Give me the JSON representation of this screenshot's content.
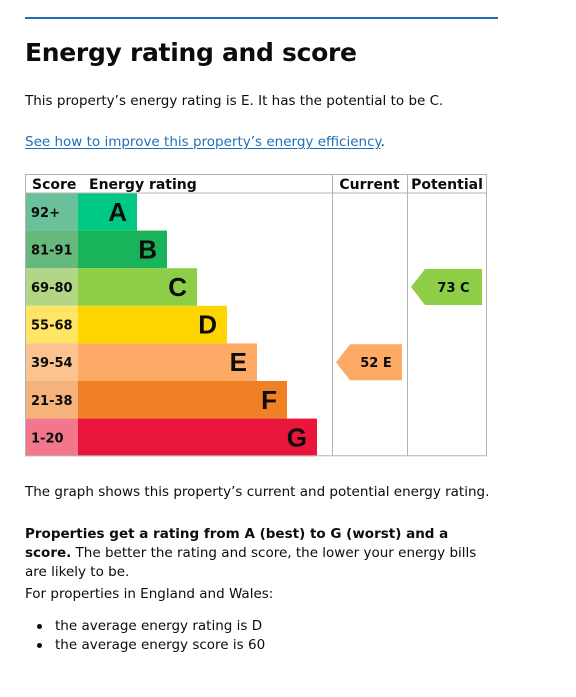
{
  "heading": "Energy rating and score",
  "intro": "This property’s energy rating is E. It has the potential to be C.",
  "improve_link": "See how to improve this property’s energy efficiency",
  "improve_link_period": ".",
  "chart_data": {
    "type": "bar",
    "headers": {
      "score": "Score",
      "rating": "Energy rating",
      "current": "Current",
      "potential": "Potential"
    },
    "bands": [
      {
        "score": "92+",
        "letter": "A",
        "color": "#69c09a",
        "bar_color": "#00c781"
      },
      {
        "score": "81-91",
        "letter": "B",
        "color": "#66b87c",
        "bar_color": "#19b459"
      },
      {
        "score": "69-80",
        "letter": "C",
        "color": "#b3d686",
        "bar_color": "#8dce46"
      },
      {
        "score": "55-68",
        "letter": "D",
        "color": "#ffe566",
        "bar_color": "#ffd500"
      },
      {
        "score": "39-54",
        "letter": "E",
        "color": "#fcc391",
        "bar_color": "#fcaa65"
      },
      {
        "score": "21-38",
        "letter": "F",
        "color": "#f5b27b",
        "bar_color": "#ef8023"
      },
      {
        "score": "1-20",
        "letter": "G",
        "color": "#f2778c",
        "bar_color": "#e9153b"
      }
    ],
    "current": {
      "score": 52,
      "letter": "E",
      "label": "52  E",
      "color": "#fcaa65"
    },
    "potential": {
      "score": 73,
      "letter": "C",
      "label": "73  C",
      "color": "#8dce46"
    }
  },
  "graph_note": "The graph shows this property’s current and potential energy rating.",
  "rating_bold": "Properties get a rating from A (best) to G (worst) and a score.",
  "rating_rest": " The better the rating and score, the lower your energy bills are likely to be.",
  "region": "For properties in England and Wales:",
  "averages": [
    "the average energy rating is D",
    "the average energy score is 60"
  ]
}
